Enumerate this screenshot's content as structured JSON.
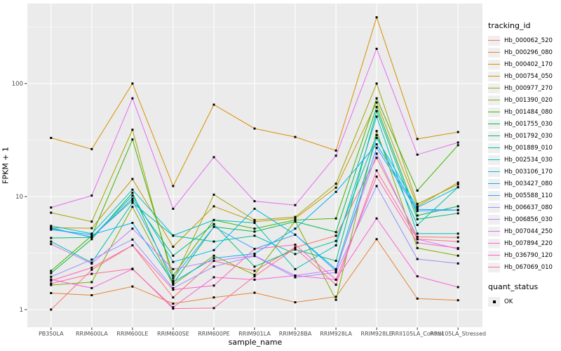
{
  "figure": {
    "background": "#ffffff",
    "panel_background": "#ebebeb",
    "grid_color": "#ffffff",
    "tick_color": "#333333",
    "tick_label_color": "#4d4d4d",
    "axis_title_color": "#000000",
    "point_color": "#000000"
  },
  "chart_data": {
    "type": "line",
    "title": "",
    "xlabel": "sample_name",
    "ylabel": "FPKM + 1",
    "y_scale": "log10",
    "y_ticks": [
      1,
      10,
      100
    ],
    "y_minor_breaks": [
      3.162,
      31.62,
      316.2
    ],
    "ylim": [
      1,
      500
    ],
    "grid": "on",
    "legend_position": "right",
    "categories": [
      "PB350LA",
      "RRIM600LA",
      "RRIM600LE",
      "RRIM600SE",
      "RRIM600PE",
      "RRIM901LA",
      "RRIM928BA",
      "RRIM928LA",
      "RRIM928LE",
      "RRII105LA_Control",
      "RRII105LA_Stressed"
    ],
    "series": [
      {
        "name": "Hb_000062_520",
        "color": "#F8766D",
        "values": [
          1.0,
          2.25,
          3.7,
          1.28,
          2.7,
          2.2,
          3.55,
          4.5,
          22,
          4.4,
          4.35
        ]
      },
      {
        "name": "Hb_000296_080",
        "color": "#EA8331",
        "values": [
          1.4,
          1.34,
          1.6,
          1.13,
          1.28,
          1.41,
          1.16,
          1.3,
          4.2,
          1.25,
          1.21
        ]
      },
      {
        "name": "Hb_000402_170",
        "color": "#D89000",
        "values": [
          33,
          26.3,
          100,
          12.4,
          65,
          40,
          33.7,
          25.5,
          385,
          32.3,
          37.2
        ]
      },
      {
        "name": "Hb_000754_050",
        "color": "#C09B00",
        "values": [
          5.3,
          5.25,
          14.3,
          3.6,
          8.2,
          6.0,
          6.4,
          12.0,
          68,
          8.2,
          13.3
        ]
      },
      {
        "name": "Hb_000977_270",
        "color": "#A3A500",
        "values": [
          7.2,
          6.0,
          39,
          1.8,
          10.4,
          6.2,
          6.6,
          13.0,
          100,
          8.6,
          12.8
        ]
      },
      {
        "name": "Hb_001390_020",
        "color": "#7CAE00",
        "values": [
          1.65,
          1.75,
          8.1,
          1.66,
          3.0,
          2.03,
          6.1,
          1.22,
          38,
          3.5,
          3.0
        ]
      },
      {
        "name": "Hb_001484_080",
        "color": "#39B600",
        "values": [
          2.2,
          4.5,
          32,
          2.0,
          6.2,
          5.2,
          6.2,
          6.4,
          74,
          11.3,
          28.5
        ]
      },
      {
        "name": "Hb_001755_030",
        "color": "#00BB4E",
        "values": [
          2.1,
          4.2,
          10.8,
          1.7,
          5.4,
          4.9,
          6.0,
          4.85,
          62,
          6.8,
          8.2
        ]
      },
      {
        "name": "Hb_001792_030",
        "color": "#00BF7D",
        "values": [
          4.3,
          4.35,
          9.6,
          3.0,
          5.7,
          2.4,
          3.4,
          2.7,
          57,
          6.3,
          7.1
        ]
      },
      {
        "name": "Hb_001889_010",
        "color": "#00C1A3",
        "values": [
          4.0,
          2.6,
          8.8,
          4.5,
          4.0,
          4.5,
          3.1,
          4.05,
          35,
          5.6,
          12.1
        ]
      },
      {
        "name": "Hb_002534_030",
        "color": "#00BFC4",
        "values": [
          5.5,
          4.7,
          11.5,
          4.53,
          6.2,
          5.85,
          2.28,
          3.7,
          51,
          4.7,
          4.7
        ]
      },
      {
        "name": "Hb_003106_170",
        "color": "#00BAE0",
        "values": [
          5.3,
          4.35,
          10.2,
          2.64,
          3.36,
          7.8,
          4.6,
          2.28,
          33,
          8.0,
          12.1
        ]
      },
      {
        "name": "Hb_003427_080",
        "color": "#00B0F6",
        "values": [
          5.1,
          4.6,
          5.85,
          1.75,
          2.85,
          3.12,
          5.2,
          11.0,
          29,
          7.7,
          7.6
        ]
      },
      {
        "name": "Hb_005588_110",
        "color": "#35A2FF",
        "values": [
          5.2,
          4.4,
          9.2,
          1.9,
          5.4,
          3.44,
          4.6,
          2.2,
          27,
          7.45,
          7.6
        ]
      },
      {
        "name": "Hb_006637_080",
        "color": "#9590FF",
        "values": [
          1.95,
          2.77,
          4.17,
          1.55,
          2.4,
          2.98,
          1.93,
          2.13,
          12.4,
          2.8,
          2.56
        ]
      },
      {
        "name": "Hb_006856_030",
        "color": "#C77CFF",
        "values": [
          3.8,
          2.55,
          5.2,
          2.28,
          2.7,
          3.0,
          2.0,
          2.25,
          24,
          4.2,
          3.44
        ]
      },
      {
        "name": "Hb_007044_250",
        "color": "#E76BF3",
        "values": [
          8.0,
          10.2,
          74,
          7.8,
          22.3,
          9.1,
          8.4,
          23,
          203,
          23.5,
          30.1
        ]
      },
      {
        "name": "Hb_007894_220",
        "color": "#FA62DB",
        "values": [
          1.85,
          1.55,
          2.28,
          1.05,
          1.93,
          1.84,
          2.0,
          1.84,
          6.4,
          1.97,
          1.58
        ]
      },
      {
        "name": "Hb_036790_120",
        "color": "#FF62BC",
        "values": [
          1.8,
          2.35,
          3.7,
          1.5,
          1.63,
          3.44,
          3.75,
          1.84,
          15,
          3.9,
          3.5
        ]
      },
      {
        "name": "Hb_067069_010",
        "color": "#FF6A98",
        "values": [
          1.7,
          2.07,
          2.3,
          1.02,
          1.03,
          1.97,
          3.5,
          1.66,
          17,
          4.2,
          4.0
        ]
      }
    ],
    "legend": {
      "title": "tracking_id"
    },
    "legend2": {
      "title": "quant_status",
      "items": [
        {
          "label": "OK",
          "marker": "square"
        }
      ]
    }
  }
}
